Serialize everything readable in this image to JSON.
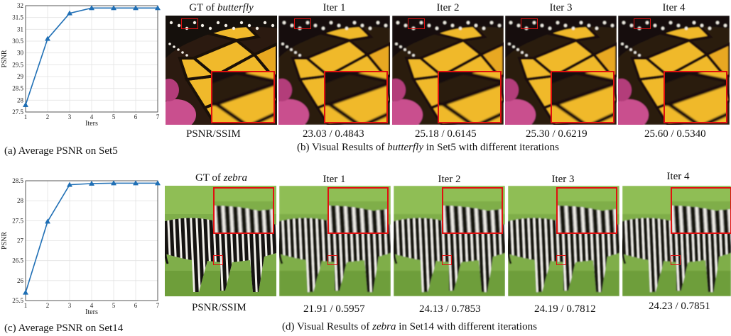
{
  "top": {
    "chart_caption": "(a) Average PSNR on Set5",
    "gt_title_prefix": "GT of ",
    "gt_title_italic": "butterfly",
    "iter_titles": [
      "Iter 1",
      "Iter 2",
      "Iter 3",
      "Iter 4"
    ],
    "metric_label": "PSNR/SSIM",
    "metrics": [
      "23.03 / 0.4843",
      "25.18 / 0.6145",
      "25.30 / 0.6219",
      "25.60 / 0.5340"
    ],
    "caption_prefix": "(b) Visual Results of ",
    "caption_italic": "butterfly",
    "caption_suffix": " in Set5 with different iterations"
  },
  "bottom": {
    "chart_caption": "(c) Average PSNR on Set14",
    "gt_title_prefix": "GT of ",
    "gt_title_italic": "zebra",
    "iter_titles": [
      "Iter 1",
      "Iter 2",
      "Iter 3",
      "Iter 4"
    ],
    "metric_label": "PSNR/SSIM",
    "metrics": [
      "21.91 / 0.5957",
      "24.13 / 0.7853",
      "24.19 / 0.7812",
      "24.23 / 0.7851"
    ],
    "caption_prefix": "(d) Visual Results of ",
    "caption_italic": "zebra",
    "caption_suffix": " in Set14 with different iterations"
  },
  "colors": {
    "line": "#1f6fb5",
    "roi": "#e01010"
  },
  "chart_data": [
    {
      "type": "line",
      "title": "",
      "xlabel": "Iters",
      "ylabel": "PSNR",
      "x": [
        1,
        2,
        3,
        4,
        5,
        6,
        7
      ],
      "series": [
        {
          "values": [
            27.8,
            30.6,
            31.68,
            31.9,
            31.9,
            31.9,
            31.9
          ]
        }
      ],
      "xlim": [
        1,
        7
      ],
      "ylim": [
        27.5,
        32
      ],
      "yticks": [
        27.5,
        28,
        28.5,
        29,
        29.5,
        30,
        30.5,
        31,
        31.5,
        32
      ],
      "grid": true,
      "marker": "triangle"
    },
    {
      "type": "line",
      "title": "",
      "xlabel": "Iters",
      "ylabel": "PSNR",
      "x": [
        1,
        2,
        3,
        4,
        5,
        6,
        7
      ],
      "series": [
        {
          "values": [
            25.7,
            27.48,
            28.4,
            28.43,
            28.44,
            28.44,
            28.44
          ]
        }
      ],
      "xlim": [
        1,
        7
      ],
      "ylim": [
        25.5,
        28.5
      ],
      "yticks": [
        25.5,
        26,
        26.5,
        27,
        27.5,
        28,
        28.5
      ],
      "grid": true,
      "marker": "triangle"
    }
  ]
}
